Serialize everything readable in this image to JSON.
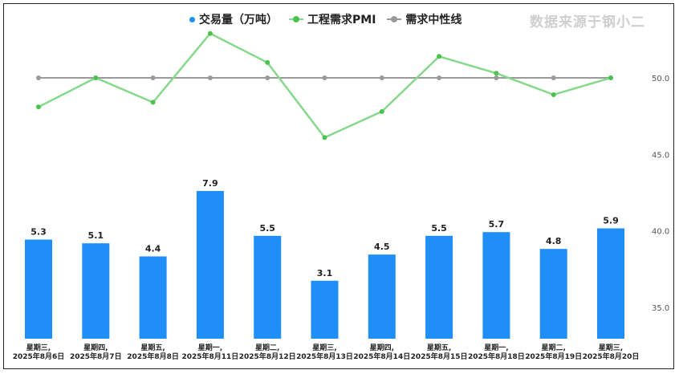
{
  "brand": "数据来源于钢小二",
  "legend": {
    "volume": "交易量（万吨）",
    "pmi": "工程需求PMI",
    "neutral": "需求中性线"
  },
  "colors": {
    "bar": "#1f8ff7",
    "pmi_line": "#86d98c",
    "pmi_point": "#4cc24e",
    "neutral_line": "#9a9a9a",
    "legend_volume": "#1f8ff7",
    "legend_pmi": "#4cc24e",
    "legend_neutral": "#9a9a9a"
  },
  "chart_data": {
    "type": "bar",
    "categories": [
      [
        "星期三,",
        "2025年8月6日"
      ],
      [
        "星期四,",
        "2025年8月7日"
      ],
      [
        "星期五,",
        "2025年8月8日"
      ],
      [
        "星期一,",
        "2025年8月11日"
      ],
      [
        "星期二,",
        "2025年8月12日"
      ],
      [
        "星期三,",
        "2025年8月13日"
      ],
      [
        "星期四,",
        "2025年8月14日"
      ],
      [
        "星期五,",
        "2025年8月15日"
      ],
      [
        "星期一,",
        "2025年8月18日"
      ],
      [
        "星期二,",
        "2025年8月19日"
      ],
      [
        "星期三,",
        "2025年8月20日"
      ]
    ],
    "series": [
      {
        "name": "交易量（万吨）",
        "type": "bar",
        "values": [
          5.3,
          5.1,
          4.4,
          7.9,
          5.5,
          3.1,
          4.5,
          5.5,
          5.7,
          4.8,
          5.9
        ],
        "value_labels": [
          "5.3",
          "5.1",
          "4.4",
          "7.9",
          "5.5",
          "3.1",
          "4.5",
          "5.5",
          "5.7",
          "4.8",
          "5.9"
        ]
      },
      {
        "name": "工程需求PMI",
        "type": "line",
        "values": [
          48.1,
          50.0,
          48.4,
          52.9,
          51.0,
          46.1,
          47.8,
          51.4,
          50.3,
          48.9,
          50.0
        ]
      },
      {
        "name": "需求中性线",
        "type": "line",
        "values": [
          50,
          50,
          50,
          50,
          50,
          50,
          50,
          50,
          50,
          50,
          50
        ]
      }
    ],
    "bar_value_range": [
      0,
      10
    ],
    "right_axis": {
      "ticks": [
        50.0,
        45.0,
        40.0,
        35.0
      ],
      "tick_labels": [
        "50.0",
        "45.0",
        "40.0",
        "35.0"
      ],
      "ylim": [
        32.0,
        54.5
      ]
    },
    "legend_position": "top-center",
    "grid": false
  }
}
